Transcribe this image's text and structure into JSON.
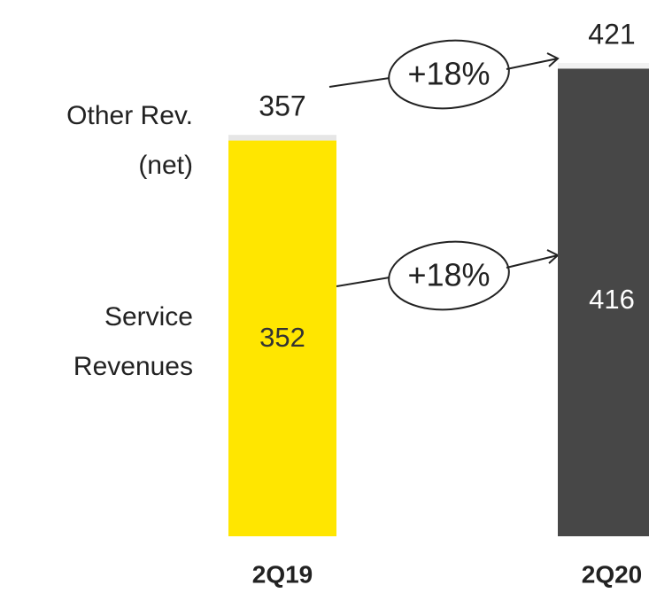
{
  "chart_data": {
    "type": "stacked_bar",
    "categories": [
      "2Q19",
      "2Q20"
    ],
    "series": [
      {
        "name": "Service Revenues",
        "color": "#ffe600",
        "label_color": "#333333",
        "values": [
          352,
          416
        ]
      },
      {
        "name": "Other Rev. (net)",
        "color": "#e6e6e6",
        "values": [
          5,
          5
        ]
      }
    ],
    "bar_colors": [
      [
        "#ffe600",
        "#474747"
      ],
      [
        "#e6e6e6",
        "#f2f2f2"
      ]
    ],
    "value_label_colors": [
      "#333333",
      "#ffffff"
    ],
    "totals": [
      357,
      421
    ],
    "annotations": [
      "+18%",
      "+18%"
    ],
    "ylim": [
      0,
      477
    ]
  }
}
